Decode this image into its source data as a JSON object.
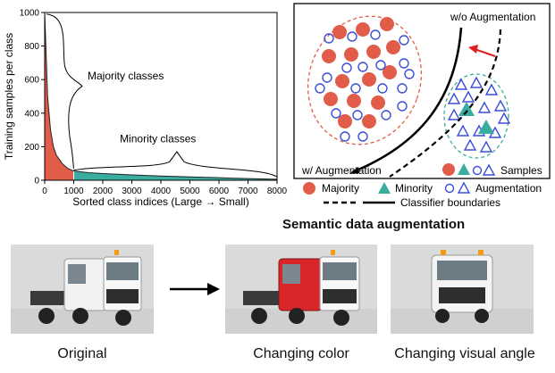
{
  "chart_data": {
    "type": "area",
    "xlabel": "Sorted class indices (Large → Small)",
    "ylabel": "Training samples per class",
    "xlim": [
      0,
      8000
    ],
    "ylim": [
      0,
      1000
    ],
    "x_ticks": [
      "0",
      "1000",
      "2000",
      "3000",
      "4000",
      "5000",
      "6000",
      "7000",
      "8000"
    ],
    "y_ticks": [
      "0",
      "200",
      "400",
      "600",
      "800",
      "1000"
    ],
    "split_index": 1000,
    "x": [
      0,
      100,
      200,
      300,
      400,
      600,
      800,
      1000,
      1500,
      2000,
      3000,
      4000,
      5000,
      6000,
      7000,
      8000
    ],
    "y": [
      1000,
      500,
      300,
      200,
      150,
      100,
      70,
      55,
      45,
      40,
      32,
      25,
      20,
      15,
      10,
      6
    ],
    "annotations": [
      "Majority classes",
      "Minority classes"
    ],
    "colors": {
      "majority_fill": "#e25c4a",
      "minority_fill": "#3aada1"
    }
  },
  "diagram": {
    "labels": {
      "wo_augmentation": "w/o Augmentation",
      "w_augmentation": "w/ Augmentation",
      "samples": "Samples"
    },
    "legend": {
      "majority": "Majority",
      "minority": "Minority",
      "augmentation": "Augmentation",
      "classifier_boundaries": "Classifier boundaries"
    },
    "colors": {
      "majority": "#e25c4a",
      "minority": "#3aada1",
      "augmentation": "#3b4fd6",
      "shift_arrow": "#e02020"
    }
  },
  "bottom": {
    "title": "Semantic data augmentation",
    "captions": {
      "original": "Original",
      "changing_color": "Changing color",
      "changing_angle": "Changing visual angle"
    },
    "colors": {
      "truck_cab": "#f2f2f2",
      "truck_recolor": "#d8262a"
    }
  }
}
